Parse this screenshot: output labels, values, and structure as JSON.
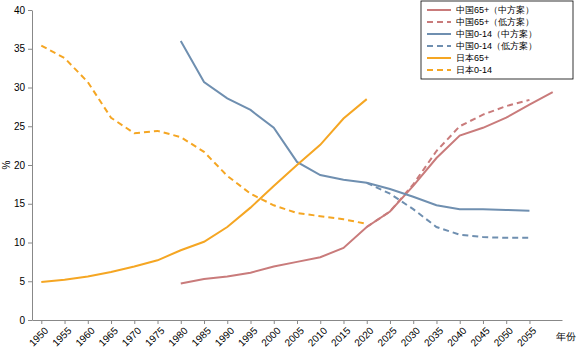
{
  "chart_data": {
    "type": "line",
    "x_label": "年份",
    "y_label": "%",
    "x": [
      1950,
      1955,
      1960,
      1965,
      1970,
      1975,
      1980,
      1985,
      1990,
      1995,
      2000,
      2005,
      2010,
      2015,
      2020,
      2025,
      2030,
      2035,
      2040,
      2045,
      2050,
      2055,
      2060
    ],
    "xlim": [
      1948,
      2062
    ],
    "xticks": [
      1950,
      1955,
      1960,
      1965,
      1970,
      1975,
      1980,
      1985,
      1990,
      1995,
      2000,
      2005,
      2010,
      2015,
      2020,
      2025,
      2030,
      2035,
      2040,
      2045,
      2050,
      2055
    ],
    "ylim": [
      0,
      40
    ],
    "yticks": [
      0,
      5,
      10,
      15,
      20,
      25,
      30,
      35,
      40
    ],
    "grid": false,
    "legend": "top-right",
    "series": [
      {
        "name": "中国65+（中方案）",
        "color": "#c97b7b",
        "line_style": "solid",
        "values": [
          null,
          null,
          null,
          null,
          null,
          null,
          4.7,
          5.3,
          5.6,
          6.1,
          6.9,
          7.5,
          8.1,
          9.3,
          12.0,
          14.0,
          17.3,
          20.9,
          23.8,
          24.8,
          26.1,
          27.8,
          29.4
        ]
      },
      {
        "name": "中国65+（低方案）",
        "color": "#c97b7b",
        "line_style": "dashed",
        "values": [
          null,
          null,
          null,
          null,
          null,
          null,
          null,
          null,
          null,
          null,
          null,
          null,
          null,
          null,
          12.0,
          14.0,
          17.5,
          21.8,
          25.0,
          26.5,
          27.6,
          28.4,
          null
        ]
      },
      {
        "name": "中国0-14（中方案）",
        "color": "#6f8fb0",
        "line_style": "solid",
        "values": [
          null,
          null,
          null,
          null,
          null,
          null,
          36.0,
          30.7,
          28.6,
          27.1,
          24.8,
          20.4,
          18.7,
          18.1,
          17.7,
          16.9,
          15.9,
          14.8,
          14.3,
          14.3,
          14.2,
          14.1,
          null
        ]
      },
      {
        "name": "中国0-14（低方案）",
        "color": "#6f8fb0",
        "line_style": "dashed",
        "values": [
          null,
          null,
          null,
          null,
          null,
          null,
          null,
          null,
          null,
          null,
          null,
          null,
          null,
          null,
          17.7,
          16.3,
          14.3,
          12.0,
          11.0,
          10.7,
          10.6,
          10.6,
          null
        ]
      },
      {
        "name": "日本65+",
        "color": "#f5a623",
        "line_style": "solid",
        "values": [
          4.9,
          5.2,
          5.6,
          6.2,
          6.9,
          7.7,
          9.0,
          10.1,
          12.0,
          14.5,
          17.3,
          20.0,
          22.6,
          26.0,
          28.5,
          null,
          null,
          null,
          null,
          null,
          null,
          null,
          null
        ]
      },
      {
        "name": "日本0-14",
        "color": "#f5a623",
        "line_style": "dashed",
        "values": [
          35.4,
          33.8,
          30.7,
          26.1,
          24.1,
          24.4,
          23.6,
          21.7,
          18.6,
          16.3,
          14.8,
          13.8,
          13.4,
          13.0,
          12.4,
          null,
          null,
          null,
          null,
          null,
          null,
          null,
          null
        ]
      }
    ]
  }
}
